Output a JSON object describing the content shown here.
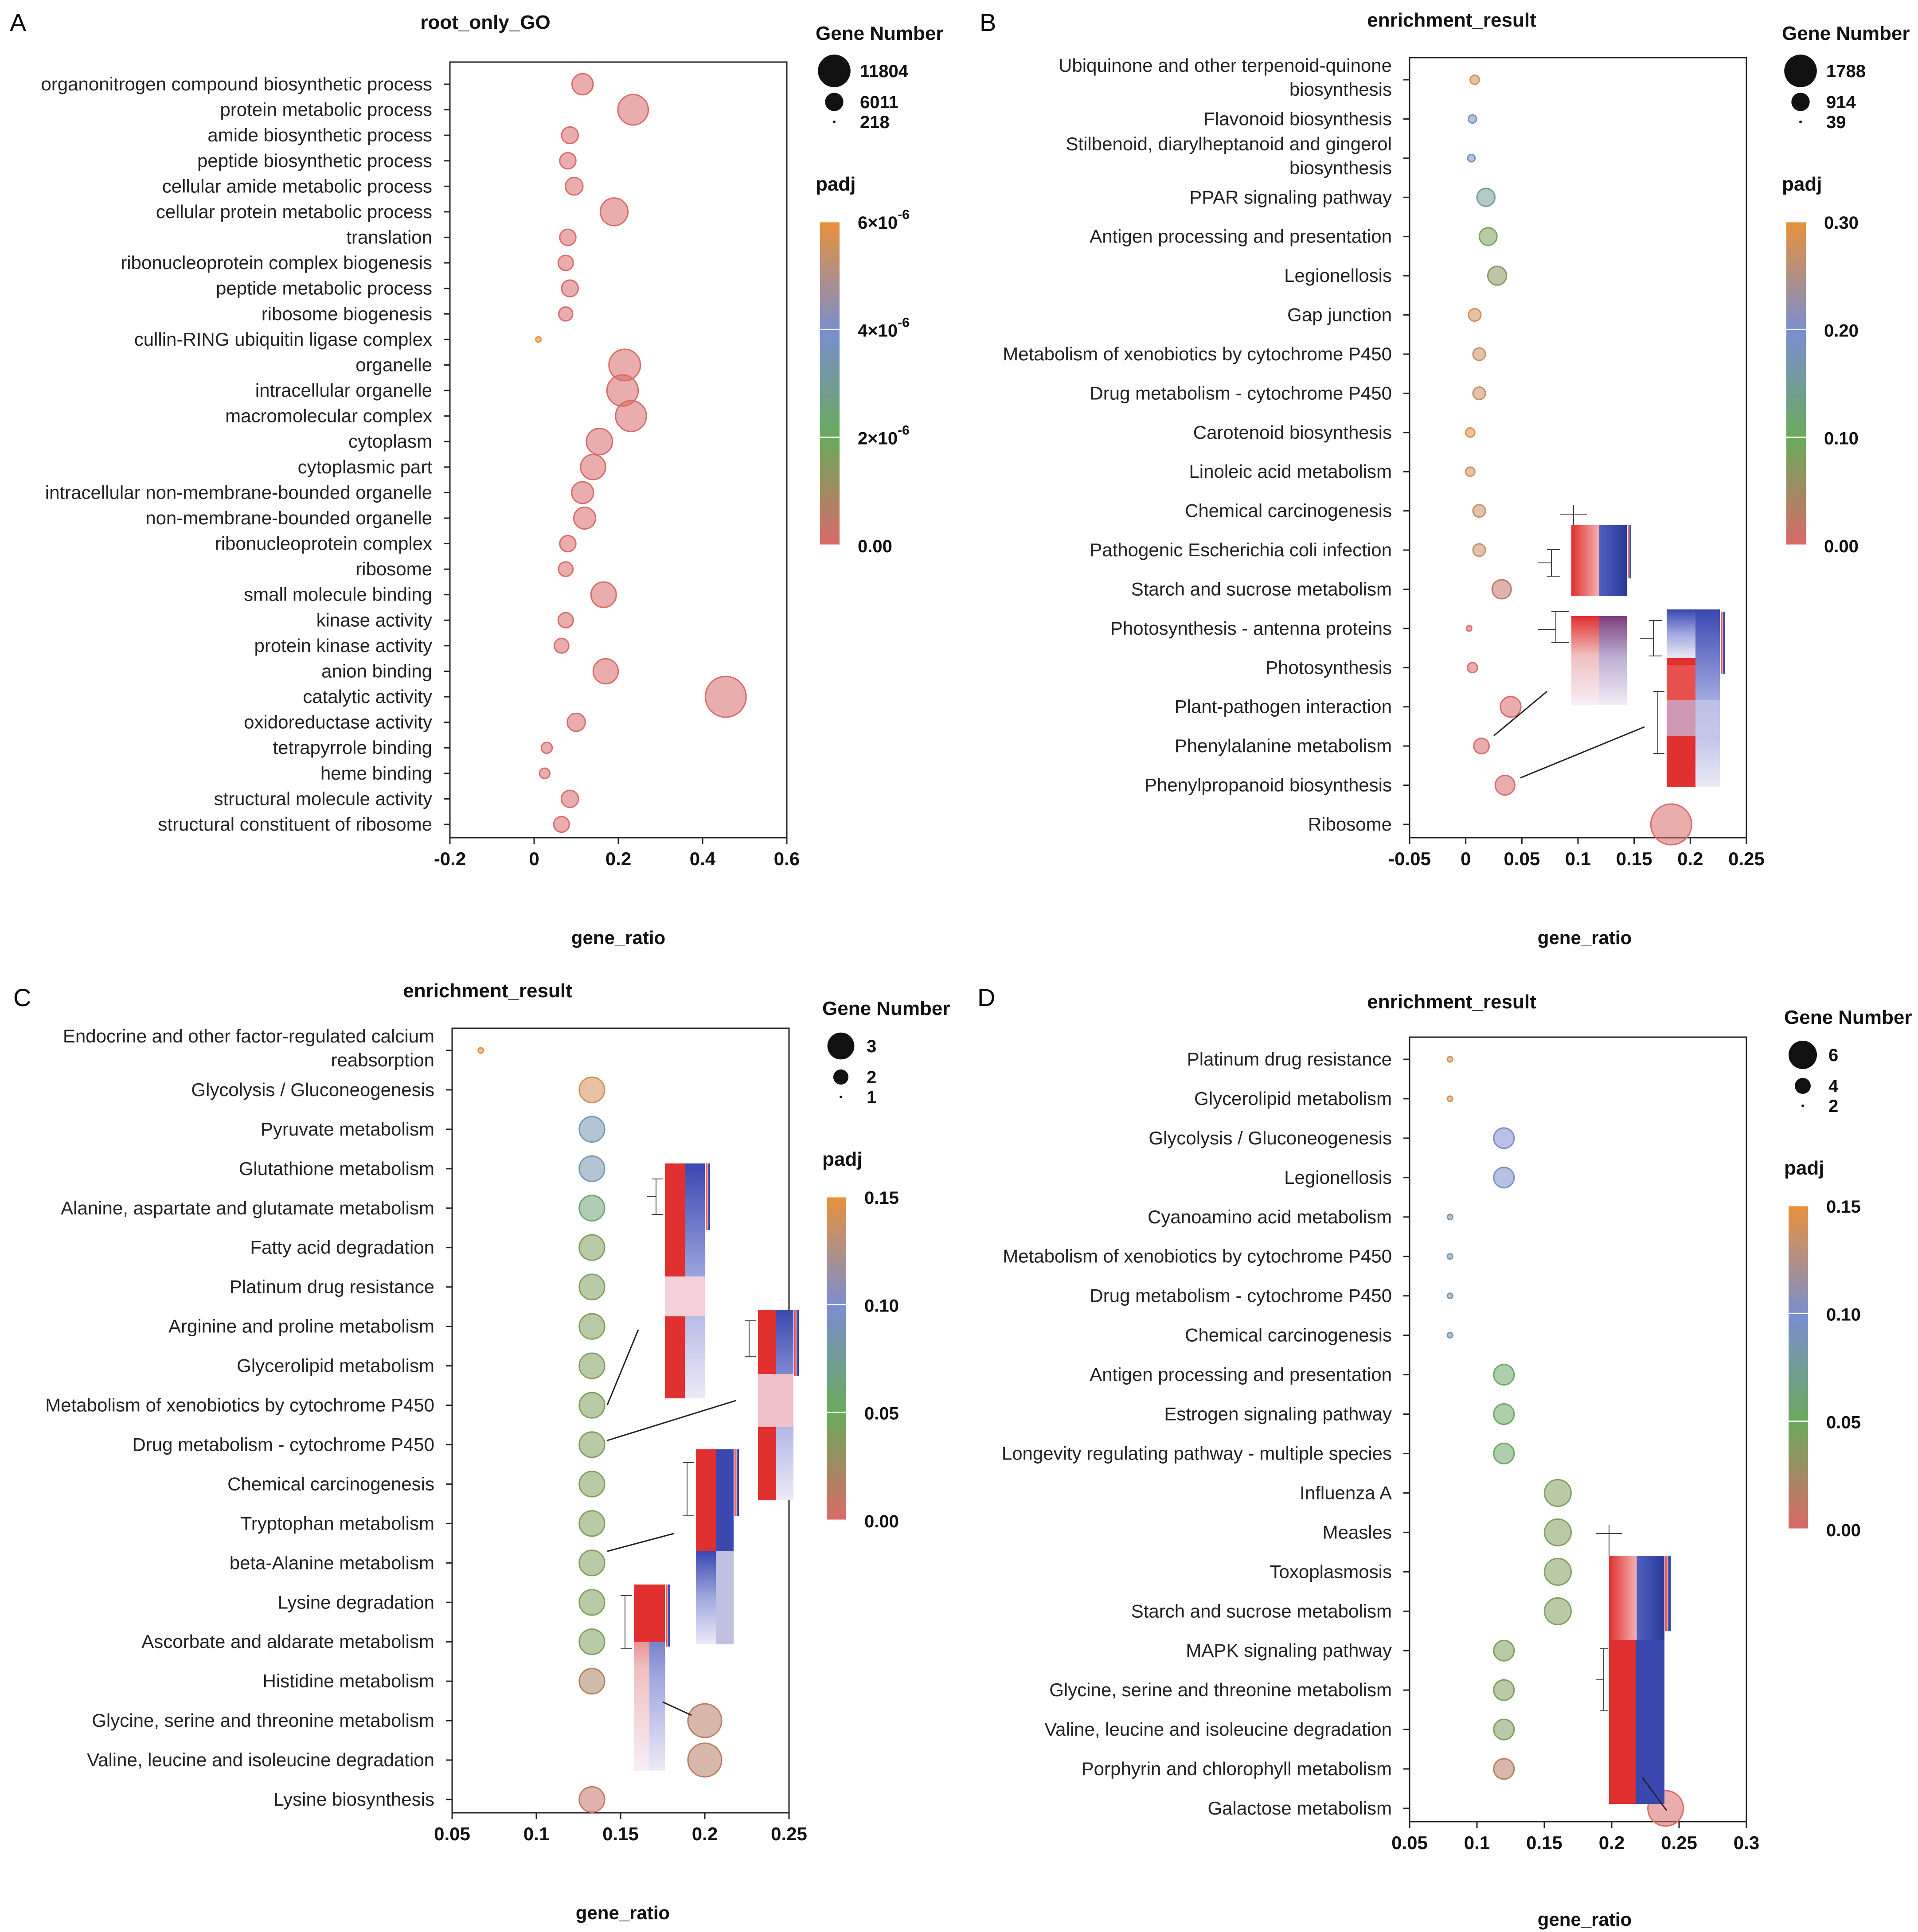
{
  "panels_meta": {
    "letters": [
      "A",
      "B",
      "C",
      "D"
    ]
  },
  "chart_data": [
    {
      "panel": "A",
      "type": "scatter",
      "title": "root_only_GO",
      "xlabel": "gene_ratio",
      "xlim": [
        -0.2,
        0.6
      ],
      "xticks": [
        -0.2,
        0,
        0.2,
        0.4,
        0.6
      ],
      "xtick_labels": [
        "-0.2",
        "0",
        "0.2",
        "0.4",
        "0.6"
      ],
      "size_legend": {
        "title": "Gene Number",
        "values": [
          11804,
          6011,
          218
        ],
        "labels": [
          "11804",
          "6011",
          "218"
        ]
      },
      "color_legend": {
        "title": "padj",
        "labels": [
          "6×10",
          "4×10",
          "2×10",
          "0.00"
        ],
        "exponent": "-6",
        "range": [
          0,
          6e-06
        ]
      },
      "colors": [
        "#d96a6a",
        "#6aaa5a",
        "#7a8ed0",
        "#e8913a"
      ],
      "points": [
        {
          "term": "organonitrogen compound biosynthetic process",
          "ratio": 0.115,
          "count": 2500,
          "padj": 0
        },
        {
          "term": "protein metabolic process",
          "ratio": 0.235,
          "count": 6011,
          "padj": 0
        },
        {
          "term": "amide biosynthetic process",
          "ratio": 0.085,
          "count": 1400,
          "padj": 0
        },
        {
          "term": "peptide biosynthetic process",
          "ratio": 0.08,
          "count": 1300,
          "padj": 0
        },
        {
          "term": "cellular amide metabolic process",
          "ratio": 0.095,
          "count": 1600,
          "padj": 0
        },
        {
          "term": "cellular protein metabolic process",
          "ratio": 0.19,
          "count": 4800,
          "padj": 0
        },
        {
          "term": "translation",
          "ratio": 0.08,
          "count": 1300,
          "padj": 0
        },
        {
          "term": "ribonucleoprotein complex biogenesis",
          "ratio": 0.075,
          "count": 1100,
          "padj": 0
        },
        {
          "term": "peptide metabolic process",
          "ratio": 0.085,
          "count": 1400,
          "padj": 0
        },
        {
          "term": "ribosome biogenesis",
          "ratio": 0.075,
          "count": 900,
          "padj": 0
        },
        {
          "term": "cullin-RING ubiquitin ligase complex",
          "ratio": 0.01,
          "count": 218,
          "padj": 6e-06
        },
        {
          "term": "organelle",
          "ratio": 0.215,
          "count": 6500,
          "padj": 0
        },
        {
          "term": "intracellular organelle",
          "ratio": 0.21,
          "count": 6400,
          "padj": 0
        },
        {
          "term": "macromolecular complex",
          "ratio": 0.23,
          "count": 6200,
          "padj": 0
        },
        {
          "term": "cytoplasm",
          "ratio": 0.155,
          "count": 4200,
          "padj": 0
        },
        {
          "term": "cytoplasmic part",
          "ratio": 0.14,
          "count": 3800,
          "padj": 0
        },
        {
          "term": "intracellular non-membrane-bounded organelle",
          "ratio": 0.115,
          "count": 2700,
          "padj": 0
        },
        {
          "term": "non-membrane-bounded organelle",
          "ratio": 0.12,
          "count": 2700,
          "padj": 0
        },
        {
          "term": "ribonucleoprotein complex",
          "ratio": 0.08,
          "count": 1300,
          "padj": 0
        },
        {
          "term": "ribosome",
          "ratio": 0.075,
          "count": 1000,
          "padj": 0
        },
        {
          "term": "small molecule binding",
          "ratio": 0.165,
          "count": 3900,
          "padj": 0
        },
        {
          "term": "kinase activity",
          "ratio": 0.075,
          "count": 1100,
          "padj": 0
        },
        {
          "term": "protein kinase activity",
          "ratio": 0.065,
          "count": 1000,
          "padj": 0
        },
        {
          "term": "anion binding",
          "ratio": 0.17,
          "count": 3800,
          "padj": 0
        },
        {
          "term": "catalytic activity",
          "ratio": 0.455,
          "count": 11804,
          "padj": 0
        },
        {
          "term": "oxidoreductase activity",
          "ratio": 0.1,
          "count": 1700,
          "padj": 0
        },
        {
          "term": "tetrapyrrole binding",
          "ratio": 0.03,
          "count": 500,
          "padj": 0
        },
        {
          "term": "heme binding",
          "ratio": 0.025,
          "count": 450,
          "padj": 0
        },
        {
          "term": "structural molecule activity",
          "ratio": 0.085,
          "count": 1500,
          "padj": 0
        },
        {
          "term": "structural constituent of ribosome",
          "ratio": 0.065,
          "count": 1200,
          "padj": 0
        }
      ]
    },
    {
      "panel": "B",
      "type": "scatter",
      "title": "enrichment_result",
      "xlabel": "gene_ratio",
      "xlim": [
        -0.05,
        0.25
      ],
      "xticks": [
        -0.05,
        0,
        0.05,
        0.1,
        0.15,
        0.2,
        0.25
      ],
      "xtick_labels": [
        "-0.05",
        "0",
        "0.05",
        "0.1",
        "0.15",
        "0.2",
        "0.25"
      ],
      "size_legend": {
        "title": "Gene Number",
        "values": [
          1788,
          914,
          39
        ],
        "labels": [
          "1788",
          "914",
          "39"
        ]
      },
      "color_legend": {
        "title": "padj",
        "labels": [
          "0.30",
          "0.20",
          "0.10",
          "0.00"
        ],
        "range": [
          0,
          0.3
        ]
      },
      "points": [
        {
          "term": "Ubiquinone and other terpenoid-quinone biosynthesis",
          "ratio": 0.008,
          "count": 60,
          "padj": 0.28
        },
        {
          "term": "Flavonoid biosynthesis",
          "ratio": 0.006,
          "count": 50,
          "padj": 0.19
        },
        {
          "term": "Stilbenoid, diarylheptanoid and gingerol biosynthesis",
          "ratio": 0.005,
          "count": 45,
          "padj": 0.18
        },
        {
          "term": "PPAR signaling pathway",
          "ratio": 0.018,
          "count": 260,
          "padj": 0.15
        },
        {
          "term": "Antigen processing and presentation",
          "ratio": 0.02,
          "count": 250,
          "padj": 0.08
        },
        {
          "term": "Legionellosis",
          "ratio": 0.028,
          "count": 290,
          "padj": 0.07
        },
        {
          "term": "Gap junction",
          "ratio": 0.008,
          "count": 110,
          "padj": 0.28
        },
        {
          "term": "Metabolism of xenobiotics by cytochrome P450",
          "ratio": 0.012,
          "count": 110,
          "padj": 0.27
        },
        {
          "term": "Drug metabolism - cytochrome P450",
          "ratio": 0.012,
          "count": 110,
          "padj": 0.27
        },
        {
          "term": "Carotenoid biosynthesis",
          "ratio": 0.004,
          "count": 60,
          "padj": 0.29
        },
        {
          "term": "Linoleic acid metabolism",
          "ratio": 0.004,
          "count": 60,
          "padj": 0.28
        },
        {
          "term": "Chemical carcinogenesis",
          "ratio": 0.012,
          "count": 110,
          "padj": 0.27
        },
        {
          "term": "Pathogenic Escherichia coli infection",
          "ratio": 0.012,
          "count": 110,
          "padj": 0.27
        },
        {
          "term": "Starch and sucrose metabolism",
          "ratio": 0.032,
          "count": 300,
          "padj": 0.02
        },
        {
          "term": "Photosynthesis - antenna proteins",
          "ratio": 0.003,
          "count": 39,
          "padj": 0.0
        },
        {
          "term": "Photosynthesis",
          "ratio": 0.006,
          "count": 70,
          "padj": 0.0
        },
        {
          "term": "Plant-pathogen interaction",
          "ratio": 0.04,
          "count": 360,
          "padj": 0.0
        },
        {
          "term": "Phenylalanine metabolism",
          "ratio": 0.014,
          "count": 180,
          "padj": 0.0
        },
        {
          "term": "Phenylpropanoid biosynthesis",
          "ratio": 0.035,
          "count": 320,
          "padj": 0.0
        },
        {
          "term": "Ribosome",
          "ratio": 0.183,
          "count": 1788,
          "padj": 0.0
        }
      ]
    },
    {
      "panel": "C",
      "type": "scatter",
      "title": "enrichment_result",
      "xlabel": "gene_ratio",
      "xlim": [
        0.05,
        0.25
      ],
      "xticks": [
        0.05,
        0.1,
        0.15,
        0.2,
        0.25
      ],
      "xtick_labels": [
        "0.05",
        "0.1",
        "0.15",
        "0.2",
        "0.25"
      ],
      "size_legend": {
        "title": "Gene Number",
        "values": [
          3,
          2,
          1
        ],
        "labels": [
          "3",
          "2",
          "1"
        ]
      },
      "color_legend": {
        "title": "padj",
        "labels": [
          "0.15",
          "0.10",
          "0.05",
          "0.00"
        ],
        "range": [
          0,
          0.15
        ]
      },
      "points": [
        {
          "term": "Endocrine and other factor-regulated calcium reabsorption",
          "ratio": 0.067,
          "count": 1,
          "padj": 0.15
        },
        {
          "term": "Glycolysis / Gluconeogenesis",
          "ratio": 0.133,
          "count": 2,
          "padj": 0.14
        },
        {
          "term": "Pyruvate metabolism",
          "ratio": 0.133,
          "count": 2,
          "padj": 0.085
        },
        {
          "term": "Glutathione metabolism",
          "ratio": 0.133,
          "count": 2,
          "padj": 0.085
        },
        {
          "term": "Alanine, aspartate and glutamate metabolism",
          "ratio": 0.133,
          "count": 2,
          "padj": 0.06
        },
        {
          "term": "Fatty acid degradation",
          "ratio": 0.133,
          "count": 2,
          "padj": 0.04
        },
        {
          "term": "Platinum drug resistance",
          "ratio": 0.133,
          "count": 2,
          "padj": 0.04
        },
        {
          "term": "Arginine and proline metabolism",
          "ratio": 0.133,
          "count": 2,
          "padj": 0.04
        },
        {
          "term": "Glycerolipid metabolism",
          "ratio": 0.133,
          "count": 2,
          "padj": 0.04
        },
        {
          "term": "Metabolism of xenobiotics by cytochrome P450",
          "ratio": 0.133,
          "count": 2,
          "padj": 0.04
        },
        {
          "term": "Drug metabolism - cytochrome P450",
          "ratio": 0.133,
          "count": 2,
          "padj": 0.04
        },
        {
          "term": "Chemical carcinogenesis",
          "ratio": 0.133,
          "count": 2,
          "padj": 0.04
        },
        {
          "term": "Tryptophan metabolism",
          "ratio": 0.133,
          "count": 2,
          "padj": 0.04
        },
        {
          "term": "beta-Alanine metabolism",
          "ratio": 0.133,
          "count": 2,
          "padj": 0.04
        },
        {
          "term": "Lysine degradation",
          "ratio": 0.133,
          "count": 2,
          "padj": 0.04
        },
        {
          "term": "Ascorbate and aldarate metabolism",
          "ratio": 0.133,
          "count": 2,
          "padj": 0.04
        },
        {
          "term": "Histidine metabolism",
          "ratio": 0.133,
          "count": 2,
          "padj": 0.02
        },
        {
          "term": "Glycine, serine and threonine metabolism",
          "ratio": 0.2,
          "count": 3,
          "padj": 0.015
        },
        {
          "term": "Valine, leucine and isoleucine degradation",
          "ratio": 0.2,
          "count": 3,
          "padj": 0.015
        },
        {
          "term": "Lysine biosynthesis",
          "ratio": 0.133,
          "count": 2,
          "padj": 0.01
        }
      ]
    },
    {
      "panel": "D",
      "type": "scatter",
      "title": "enrichment_result",
      "xlabel": "gene_ratio",
      "xlim": [
        0.05,
        0.3
      ],
      "xticks": [
        0.05,
        0.1,
        0.15,
        0.2,
        0.25,
        0.3
      ],
      "xtick_labels": [
        "0.05",
        "0.1",
        "0.15",
        "0.2",
        "0.25",
        "0.3"
      ],
      "size_legend": {
        "title": "Gene Number",
        "values": [
          6,
          4,
          2
        ],
        "labels": [
          "6",
          "4",
          "2"
        ]
      },
      "color_legend": {
        "title": "padj",
        "labels": [
          "0.15",
          "0.10",
          "0.05",
          "0.00"
        ],
        "range": [
          0,
          0.15
        ]
      },
      "points": [
        {
          "term": "Platinum drug resistance",
          "ratio": 0.08,
          "count": 1,
          "padj": 0.14
        },
        {
          "term": "Glycerolipid metabolism",
          "ratio": 0.08,
          "count": 1,
          "padj": 0.14
        },
        {
          "term": "Glycolysis / Gluconeogenesis",
          "ratio": 0.12,
          "count": 3,
          "padj": 0.1
        },
        {
          "term": "Legionellosis",
          "ratio": 0.12,
          "count": 3,
          "padj": 0.1
        },
        {
          "term": "Cyanoamino acid metabolism",
          "ratio": 0.08,
          "count": 1,
          "padj": 0.085
        },
        {
          "term": "Metabolism of xenobiotics by cytochrome P450",
          "ratio": 0.08,
          "count": 1,
          "padj": 0.085
        },
        {
          "term": "Drug metabolism - cytochrome P450",
          "ratio": 0.08,
          "count": 1,
          "padj": 0.085
        },
        {
          "term": "Chemical carcinogenesis",
          "ratio": 0.08,
          "count": 1,
          "padj": 0.085
        },
        {
          "term": "Antigen processing and presentation",
          "ratio": 0.12,
          "count": 3,
          "padj": 0.055
        },
        {
          "term": "Estrogen signaling pathway",
          "ratio": 0.12,
          "count": 3,
          "padj": 0.055
        },
        {
          "term": "Longevity regulating pathway - multiple species",
          "ratio": 0.12,
          "count": 3,
          "padj": 0.055
        },
        {
          "term": "Influenza A",
          "ratio": 0.16,
          "count": 4,
          "padj": 0.04
        },
        {
          "term": "Measles",
          "ratio": 0.16,
          "count": 4,
          "padj": 0.04
        },
        {
          "term": "Toxoplasmosis",
          "ratio": 0.16,
          "count": 4,
          "padj": 0.04
        },
        {
          "term": "Starch and sucrose metabolism",
          "ratio": 0.16,
          "count": 4,
          "padj": 0.04
        },
        {
          "term": "MAPK signaling pathway",
          "ratio": 0.12,
          "count": 3,
          "padj": 0.04
        },
        {
          "term": "Glycine, serine and threonine metabolism",
          "ratio": 0.12,
          "count": 3,
          "padj": 0.04
        },
        {
          "term": "Valine, leucine and isoleucine degradation",
          "ratio": 0.12,
          "count": 3,
          "padj": 0.04
        },
        {
          "term": "Porphyrin and chlorophyll metabolism",
          "ratio": 0.12,
          "count": 3,
          "padj": 0.015
        },
        {
          "term": "Galactose metabolism",
          "ratio": 0.24,
          "count": 6,
          "padj": 0.0
        }
      ]
    }
  ]
}
